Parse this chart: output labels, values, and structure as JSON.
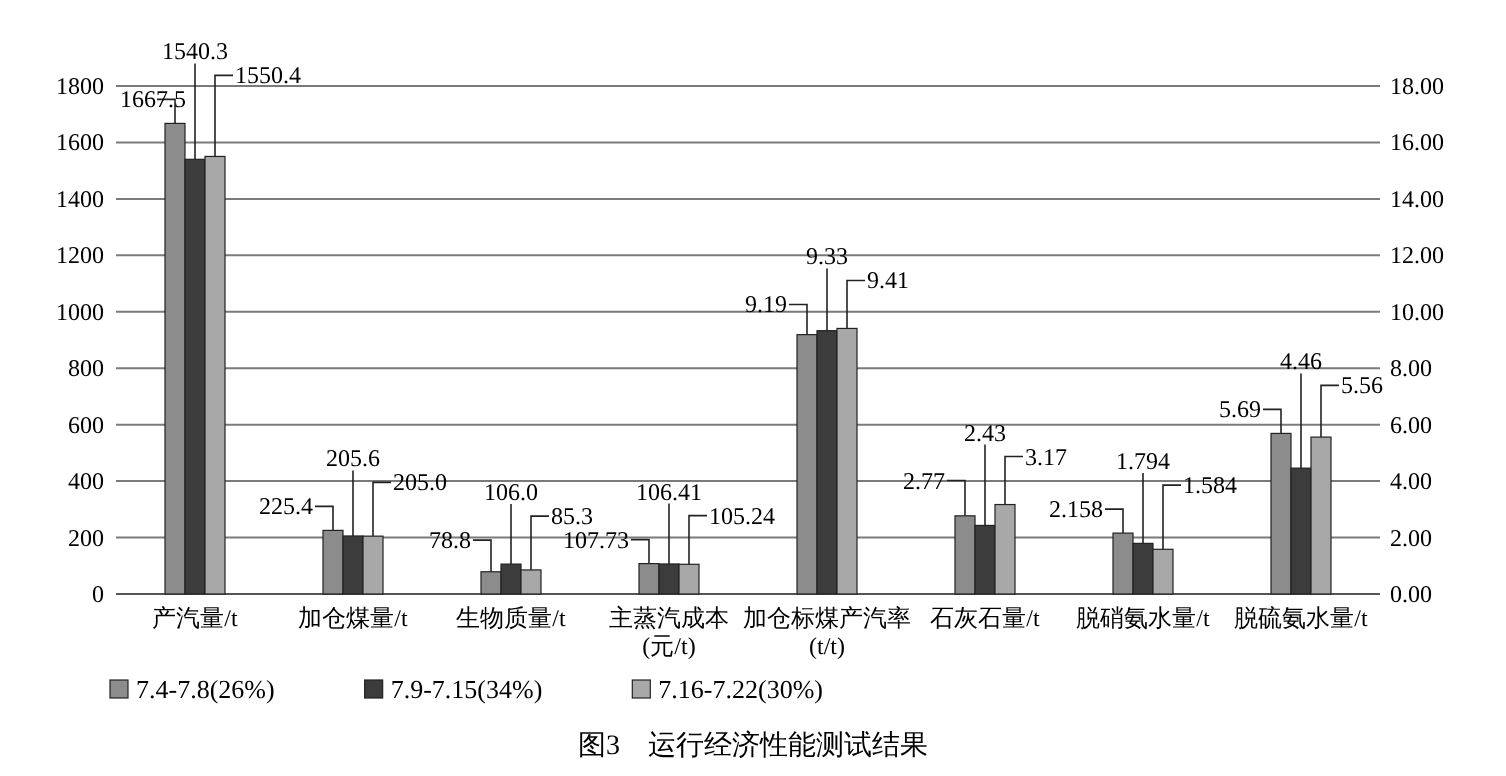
{
  "chart_data": {
    "type": "bar",
    "categories": [
      "产汽量/t",
      "加仓煤量/t",
      "生物质量/t",
      "主蒸汽成本\n(元/t)",
      "加仓标煤产汽率\n(t/t)",
      "石灰石量/t",
      "脱硝氨水量/t",
      "脱硫氨水量/t"
    ],
    "series": [
      {
        "name": "7.4-7.8(26%)",
        "color": "#8c8c8c",
        "values": [
          1667.5,
          225.4,
          78.8,
          107.73,
          null,
          null,
          null,
          null
        ],
        "value_labels": [
          "1667.5",
          "225.4",
          "78.8",
          "107.73",
          null,
          null,
          null,
          null
        ]
      },
      {
        "name": "7.9-7.15(34%)",
        "color": "#3c3c3c",
        "values": [
          1540.3,
          205.6,
          106.0,
          106.41,
          null,
          null,
          null,
          null
        ],
        "value_labels": [
          "1540.3",
          "205.6",
          "106.0",
          "106.41",
          null,
          null,
          null,
          null
        ]
      },
      {
        "name": "7.16-7.22(30%)",
        "color": "#a8a8a8",
        "values": [
          1550.4,
          205.0,
          85.3,
          105.24,
          null,
          null,
          null,
          null
        ],
        "value_labels": [
          "1550.4",
          "205.0",
          "85.3",
          "105.24",
          null,
          null,
          null,
          null
        ]
      },
      {
        "axis": "y2",
        "color": "#8c8c8c",
        "values": [
          null,
          null,
          null,
          null,
          9.19,
          2.77,
          2.158,
          5.69
        ],
        "value_labels": [
          null,
          null,
          null,
          null,
          "9.19",
          "2.77",
          "2.158",
          "5.69"
        ]
      },
      {
        "axis": "y2",
        "color": "#3c3c3c",
        "values": [
          null,
          null,
          null,
          null,
          9.33,
          2.43,
          1.794,
          4.46
        ],
        "value_labels": [
          null,
          null,
          null,
          null,
          "9.33",
          "2.43",
          "1.794",
          "4.46"
        ]
      },
      {
        "axis": "y2",
        "color": "#a8a8a8",
        "values": [
          null,
          null,
          null,
          null,
          9.41,
          3.17,
          1.584,
          5.56
        ],
        "value_labels": [
          null,
          null,
          null,
          null,
          "9.41",
          "3.17",
          "1.584",
          "5.56"
        ]
      }
    ],
    "ylim": [
      0,
      1800
    ],
    "yticks": [
      0,
      200,
      400,
      600,
      800,
      1000,
      1200,
      1400,
      1600,
      1800
    ],
    "y2lim": [
      0,
      18
    ],
    "y2ticks": [
      {
        "value": 0,
        "label": "0.00"
      },
      {
        "value": 2,
        "label": "2.00"
      },
      {
        "value": 4,
        "label": "4.00"
      },
      {
        "value": 6,
        "label": "6.00"
      },
      {
        "value": 8,
        "label": "8.00"
      },
      {
        "value": 10,
        "label": "10.00"
      },
      {
        "value": 12,
        "label": "12.00"
      },
      {
        "value": 14,
        "label": "14.00"
      },
      {
        "value": 16,
        "label": "16.00"
      },
      {
        "value": 18,
        "label": "18.00"
      }
    ],
    "grid": "y",
    "legend": "bottom",
    "annotations": [
      "图3　运行经济性能测试结果"
    ]
  }
}
